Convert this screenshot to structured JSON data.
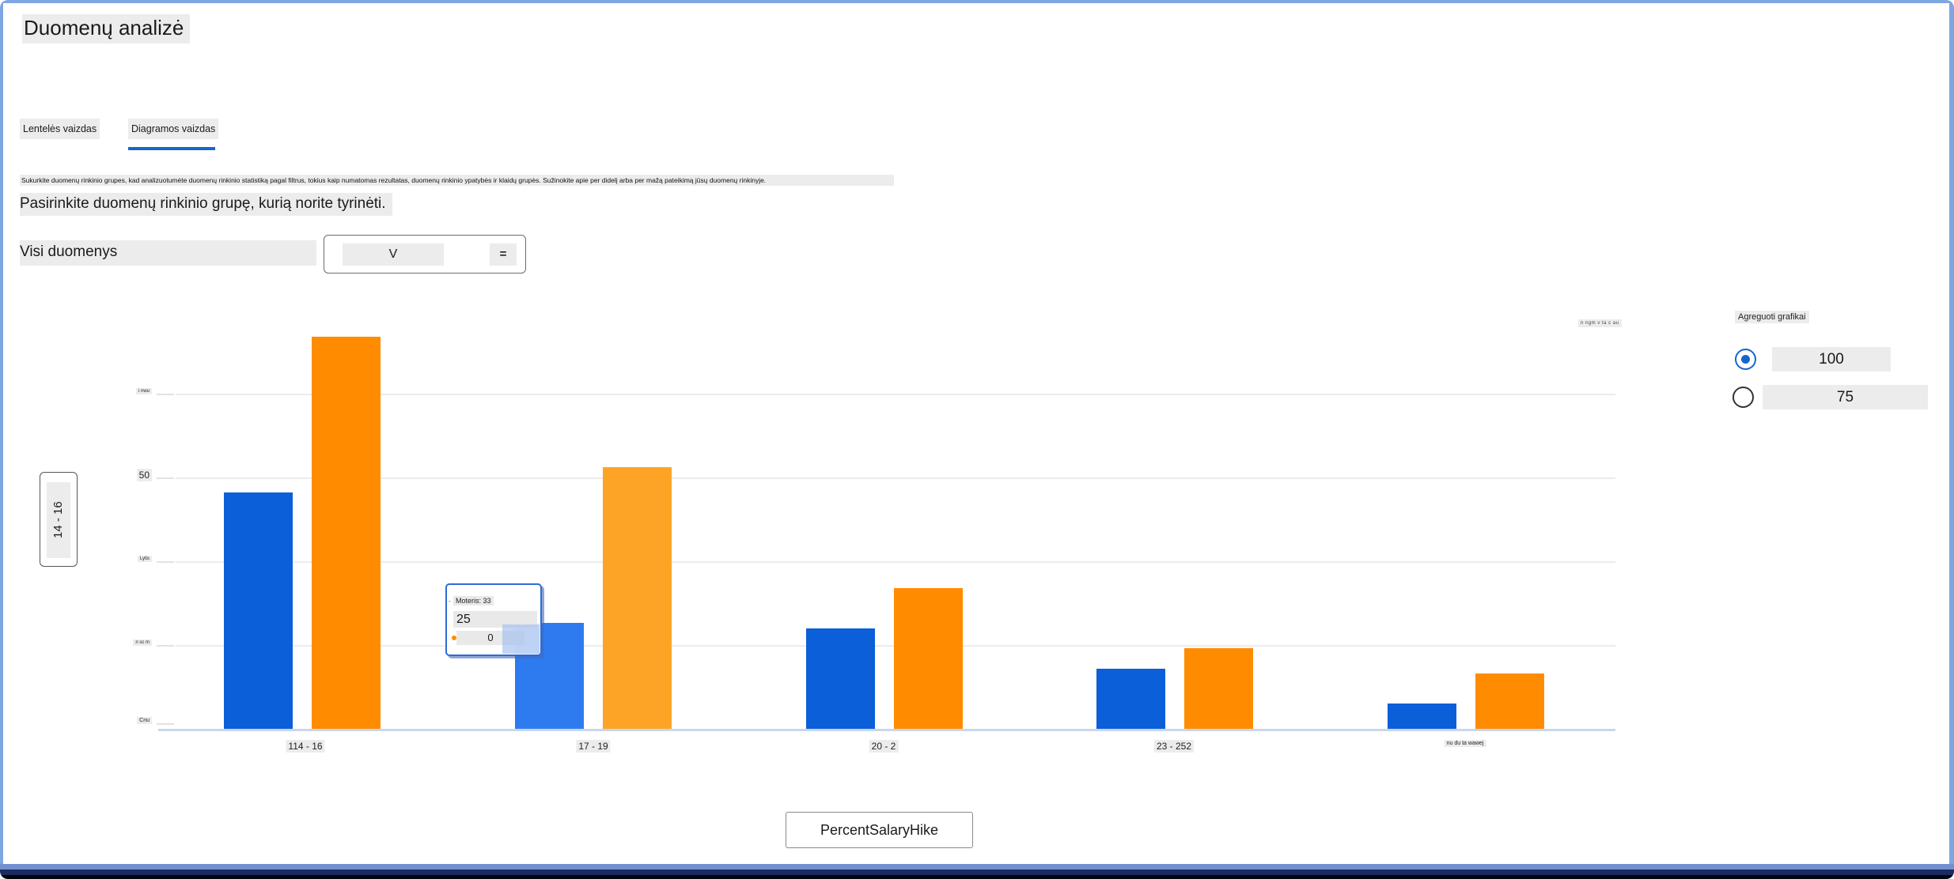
{
  "window_title": "Duomenų analizė",
  "tabs": {
    "table": "Lentelės vaizdas",
    "chart": "Diagramos vaizdas",
    "active": "Diagramos vaizdas"
  },
  "intro": {
    "description": "Sukurkite duomenų rinkinio grupes, kad analizuotumėte duomenų rinkinio statistiką pagal filtrus, tokius kaip numatomas rezultatas, duomenų rinkinio ypatybės ir klaidų grupės. Sužinokite apie per didelį arba per mažą pateikimą jūsų duomenų rinkinyje.",
    "subtitle": "Pasirinkite duomenų rinkinio grupę, kurią norite tyrinėti."
  },
  "selector": {
    "label": "Visi duomenys",
    "value": "V",
    "icon": "="
  },
  "aggregate": {
    "title": "Agreguoti grafikai",
    "options": [
      {
        "label": "100",
        "selected": true
      },
      {
        "label": "75",
        "selected": false
      }
    ]
  },
  "axis_box_label": "14 - 16",
  "legend_small_text": "n ngm v ta c au",
  "tooltip": {
    "header": "Moteris: 33",
    "dash": "-",
    "primary": "25",
    "secondary": "0"
  },
  "footer_button": "PercentSalaryHike",
  "colors": {
    "accent_blue": "#1565d1",
    "bar_blue": "#0b5fd8",
    "bar_orange": "#ff8c00",
    "bar_blue_highlight": "#2e7bf0",
    "bar_orange_highlight": "#fda426",
    "tab_underline": "#1565d1",
    "frame_border": "#7ea6e0"
  },
  "chart_data": {
    "type": "bar",
    "title": "",
    "xlabel": "",
    "ylabel": "",
    "categories": [
      "114 - 16",
      "17 - 19",
      "20 - 2",
      "23 - 252",
      "nu du ta wawej"
    ],
    "series": [
      {
        "name": "blue-series",
        "color": "#0b5fd8",
        "values": [
          47,
          21,
          20,
          12,
          5
        ]
      },
      {
        "name": "orange-series",
        "color": "#ff8c00",
        "values": [
          78,
          52,
          28,
          16,
          11
        ]
      }
    ],
    "highlighted_group_index": 1,
    "highlight_colors": {
      "blue": "#2e7bf0",
      "orange": "#fda426"
    },
    "y_tick_labels": [
      "i nwu",
      "50",
      "Lytis",
      "n sc m",
      "Cnu"
    ],
    "ylim": [
      0,
      82
    ],
    "grid": true,
    "legend_position": "top-right"
  }
}
